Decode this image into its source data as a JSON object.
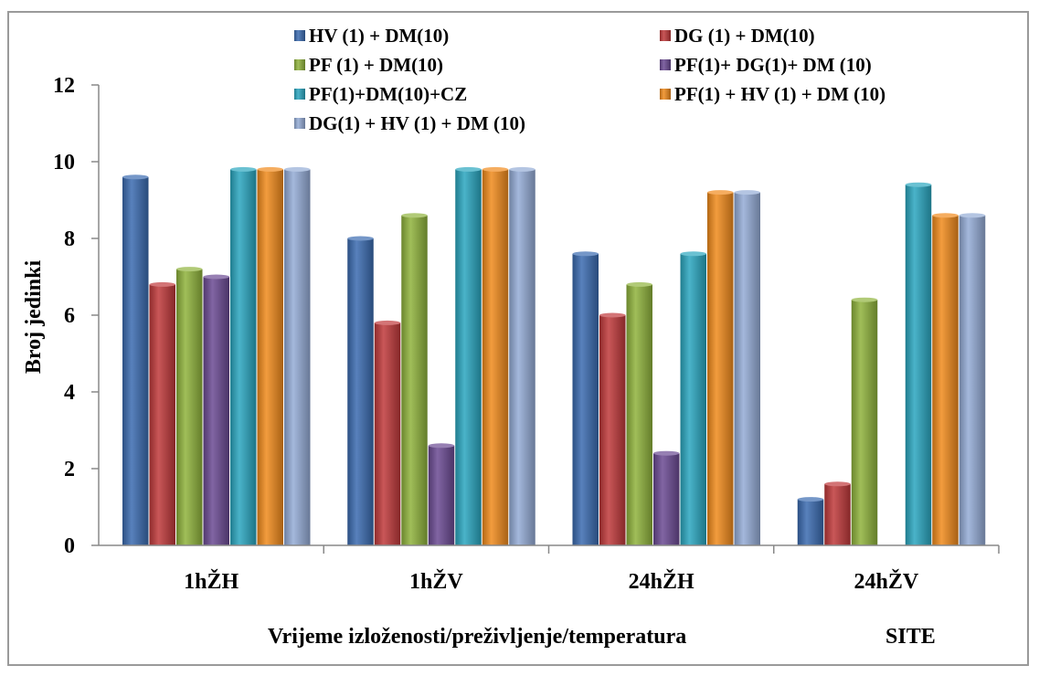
{
  "chart_data": {
    "type": "bar",
    "title": "",
    "xlabel": "Vrijeme izloženosti/preživljenje/temperatura",
    "ylabel": "Broj jedinki",
    "note": "SITE",
    "categories": [
      "1hŽH",
      "1hŽV",
      "24hŽH",
      "24hŽV"
    ],
    "ylim": [
      0,
      12
    ],
    "yticks": [
      0,
      2,
      4,
      6,
      8,
      10,
      12
    ],
    "grid": false,
    "legend_position": "top",
    "series": [
      {
        "name": "HV (1) + DM(10)",
        "color": "#3a6bb0",
        "values": [
          9.6,
          8.0,
          7.6,
          1.2
        ]
      },
      {
        "name": "DG (1) + DM(10)",
        "color": "#c0393b",
        "values": [
          6.8,
          5.8,
          6.0,
          1.6
        ]
      },
      {
        "name": "PF (1) + DM(10)",
        "color": "#8fb33c",
        "values": [
          7.2,
          8.6,
          6.8,
          6.4
        ]
      },
      {
        "name": "PF(1)+ DG(1)+ DM (10)",
        "color": "#6b4a93",
        "values": [
          7.0,
          2.6,
          2.4,
          0
        ]
      },
      {
        "name": "PF(1)+DM(10)+CZ",
        "color": "#2aa6bf",
        "values": [
          9.8,
          9.8,
          7.6,
          9.4
        ]
      },
      {
        "name": "PF(1) + HV (1) + DM (10)",
        "color": "#f08a1c",
        "values": [
          9.8,
          9.8,
          9.2,
          8.6
        ]
      },
      {
        "name": "DG(1) + HV (1) + DM (10)",
        "color": "#94acd6",
        "values": [
          9.8,
          9.8,
          9.2,
          8.6
        ]
      }
    ]
  }
}
